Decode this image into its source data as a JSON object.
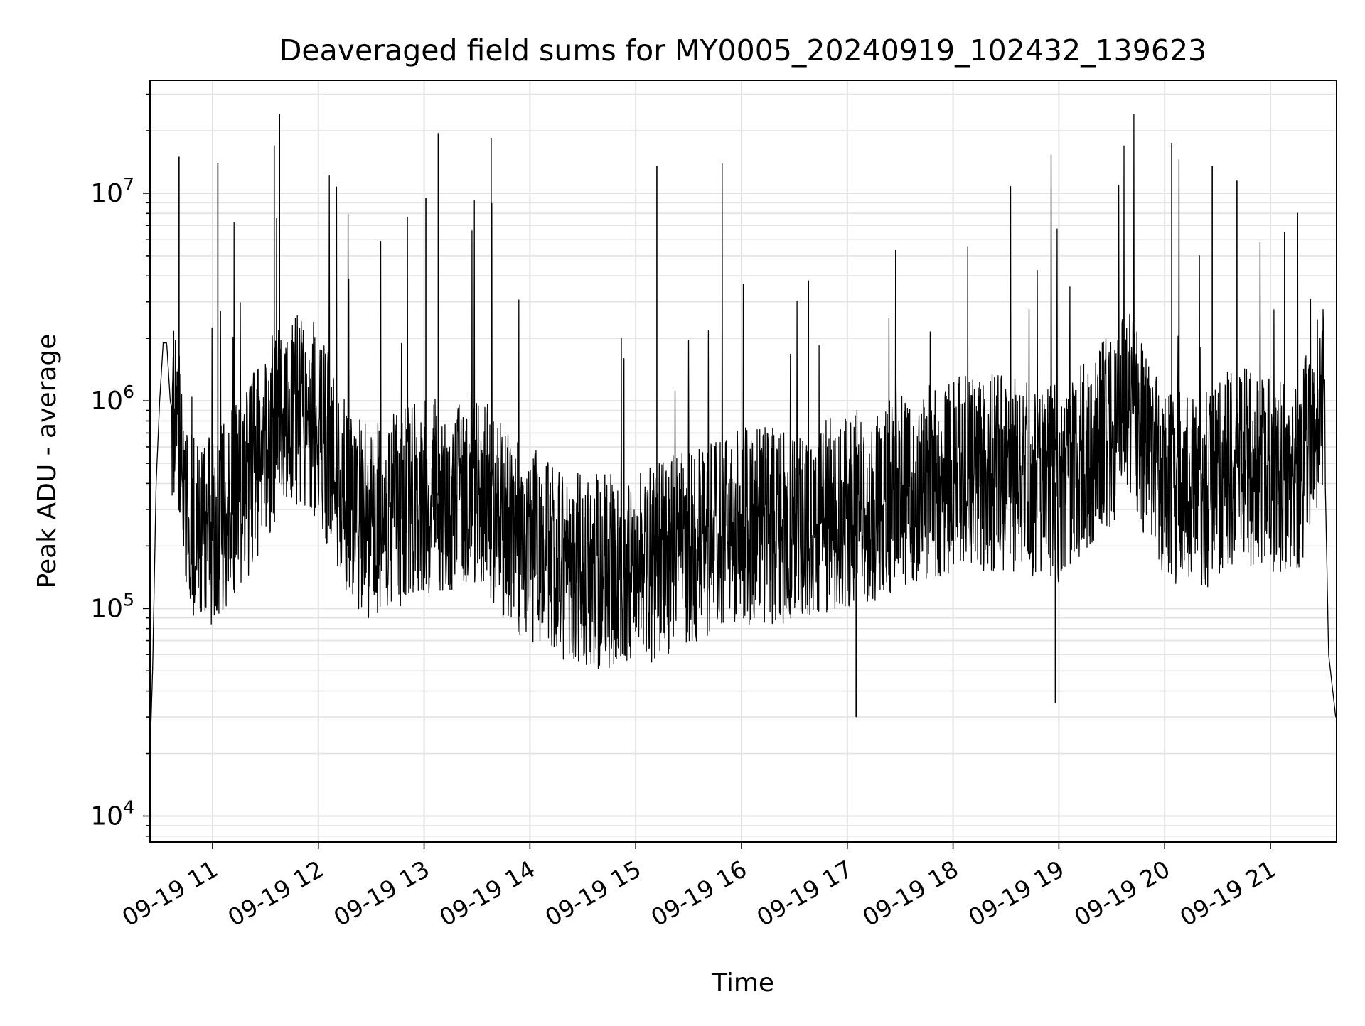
{
  "chart_data": {
    "type": "line",
    "title": "Deaveraged field sums for MY0005_20240919_102432_139623",
    "xlabel": "Time",
    "ylabel": "Peak ADU - average",
    "yscale": "log",
    "ylim": [
      7500,
      35000000
    ],
    "xlim": [
      "2024-09-19 10:24:32",
      "2024-09-19 21:37:30"
    ],
    "grid": true,
    "line_color": "#000000",
    "x_ticks": [
      {
        "time": "2024-09-19 11:00",
        "label": "09-19 11"
      },
      {
        "time": "2024-09-19 12:00",
        "label": "09-19 12"
      },
      {
        "time": "2024-09-19 13:00",
        "label": "09-19 13"
      },
      {
        "time": "2024-09-19 14:00",
        "label": "09-19 14"
      },
      {
        "time": "2024-09-19 15:00",
        "label": "09-19 15"
      },
      {
        "time": "2024-09-19 16:00",
        "label": "09-19 16"
      },
      {
        "time": "2024-09-19 17:00",
        "label": "09-19 17"
      },
      {
        "time": "2024-09-19 18:00",
        "label": "09-19 18"
      },
      {
        "time": "2024-09-19 19:00",
        "label": "09-19 19"
      },
      {
        "time": "2024-09-19 20:00",
        "label": "09-19 20"
      },
      {
        "time": "2024-09-19 21:00",
        "label": "09-19 21"
      }
    ],
    "y_ticks": [
      {
        "value": 10000,
        "base": "10",
        "exp": "4"
      },
      {
        "value": 100000,
        "base": "10",
        "exp": "5"
      },
      {
        "value": 1000000,
        "base": "10",
        "exp": "6"
      },
      {
        "value": 10000000,
        "base": "10",
        "exp": "7"
      }
    ],
    "series": [
      {
        "x": [
          "2024-09-19 10:24:32",
          "2024-09-19 10:26:00",
          "2024-09-19 10:28:00",
          "2024-09-19 10:30:00",
          "2024-09-19 10:32:00",
          "2024-09-19 10:34:00",
          "2024-09-19 10:36:00",
          "2024-09-19 10:40:00",
          "2024-09-19 10:45:00",
          "2024-09-19 10:50:00",
          "2024-09-19 10:55:00",
          "2024-09-19 11:00:00",
          "2024-09-19 11:10:00",
          "2024-09-19 11:20:00",
          "2024-09-19 11:30:00",
          "2024-09-19 11:40:00",
          "2024-09-19 11:50:00",
          "2024-09-19 12:00:00",
          "2024-09-19 12:15:00",
          "2024-09-19 12:30:00",
          "2024-09-19 12:45:00",
          "2024-09-19 13:00:00",
          "2024-09-19 13:15:00",
          "2024-09-19 13:30:00",
          "2024-09-19 13:45:00",
          "2024-09-19 14:00:00",
          "2024-09-19 14:30:00",
          "2024-09-19 15:00:00",
          "2024-09-19 15:30:00",
          "2024-09-19 16:00:00",
          "2024-09-19 16:30:00",
          "2024-09-19 17:00:00",
          "2024-09-19 17:30:00",
          "2024-09-19 18:00:00",
          "2024-09-19 18:30:00",
          "2024-09-19 19:00:00",
          "2024-09-19 19:20:00",
          "2024-09-19 19:40:00",
          "2024-09-19 20:00:00",
          "2024-09-19 20:20:00",
          "2024-09-19 20:40:00",
          "2024-09-19 21:00:00",
          "2024-09-19 21:15:00",
          "2024-09-19 21:25:00",
          "2024-09-19 21:30:00",
          "2024-09-19 21:33:00",
          "2024-09-19 21:37:00"
        ],
        "y": [
          20000,
          50000,
          400000,
          1000000,
          1900000,
          1900000,
          1000000,
          700000,
          300000,
          250000,
          250000,
          250000,
          300000,
          400000,
          600000,
          1000000,
          900000,
          800000,
          350000,
          250000,
          300000,
          350000,
          350000,
          400000,
          250000,
          200000,
          150000,
          150000,
          200000,
          250000,
          250000,
          300000,
          350000,
          450000,
          450000,
          400000,
          600000,
          900000,
          400000,
          350000,
          500000,
          450000,
          400000,
          800000,
          1200000,
          60000,
          30000
        ]
      }
    ],
    "spikes": [
      {
        "x": "2024-09-19 10:41",
        "y": 15000000
      },
      {
        "x": "2024-09-19 11:03",
        "y": 14000000
      },
      {
        "x": "2024-09-19 11:38",
        "y": 24000000
      },
      {
        "x": "2024-09-19 11:35",
        "y": 17000000
      },
      {
        "x": "2024-09-19 13:08",
        "y": 19500000
      },
      {
        "x": "2024-09-19 13:38",
        "y": 18500000
      },
      {
        "x": "2024-09-19 15:12",
        "y": 13500000
      },
      {
        "x": "2024-09-19 20:04",
        "y": 17500000
      },
      {
        "x": "2024-09-19 20:27",
        "y": 13500000
      },
      {
        "x": "2024-09-19 20:41",
        "y": 11500000
      },
      {
        "x": "2024-09-19 13:01",
        "y": 9500000
      },
      {
        "x": "2024-09-19 16:38",
        "y": 3800000
      },
      {
        "x": "2024-09-19 21:08",
        "y": 6500000
      },
      {
        "x": "2024-09-19 17:05",
        "y": 30000
      },
      {
        "x": "2024-09-19 18:58",
        "y": 35000
      }
    ]
  }
}
